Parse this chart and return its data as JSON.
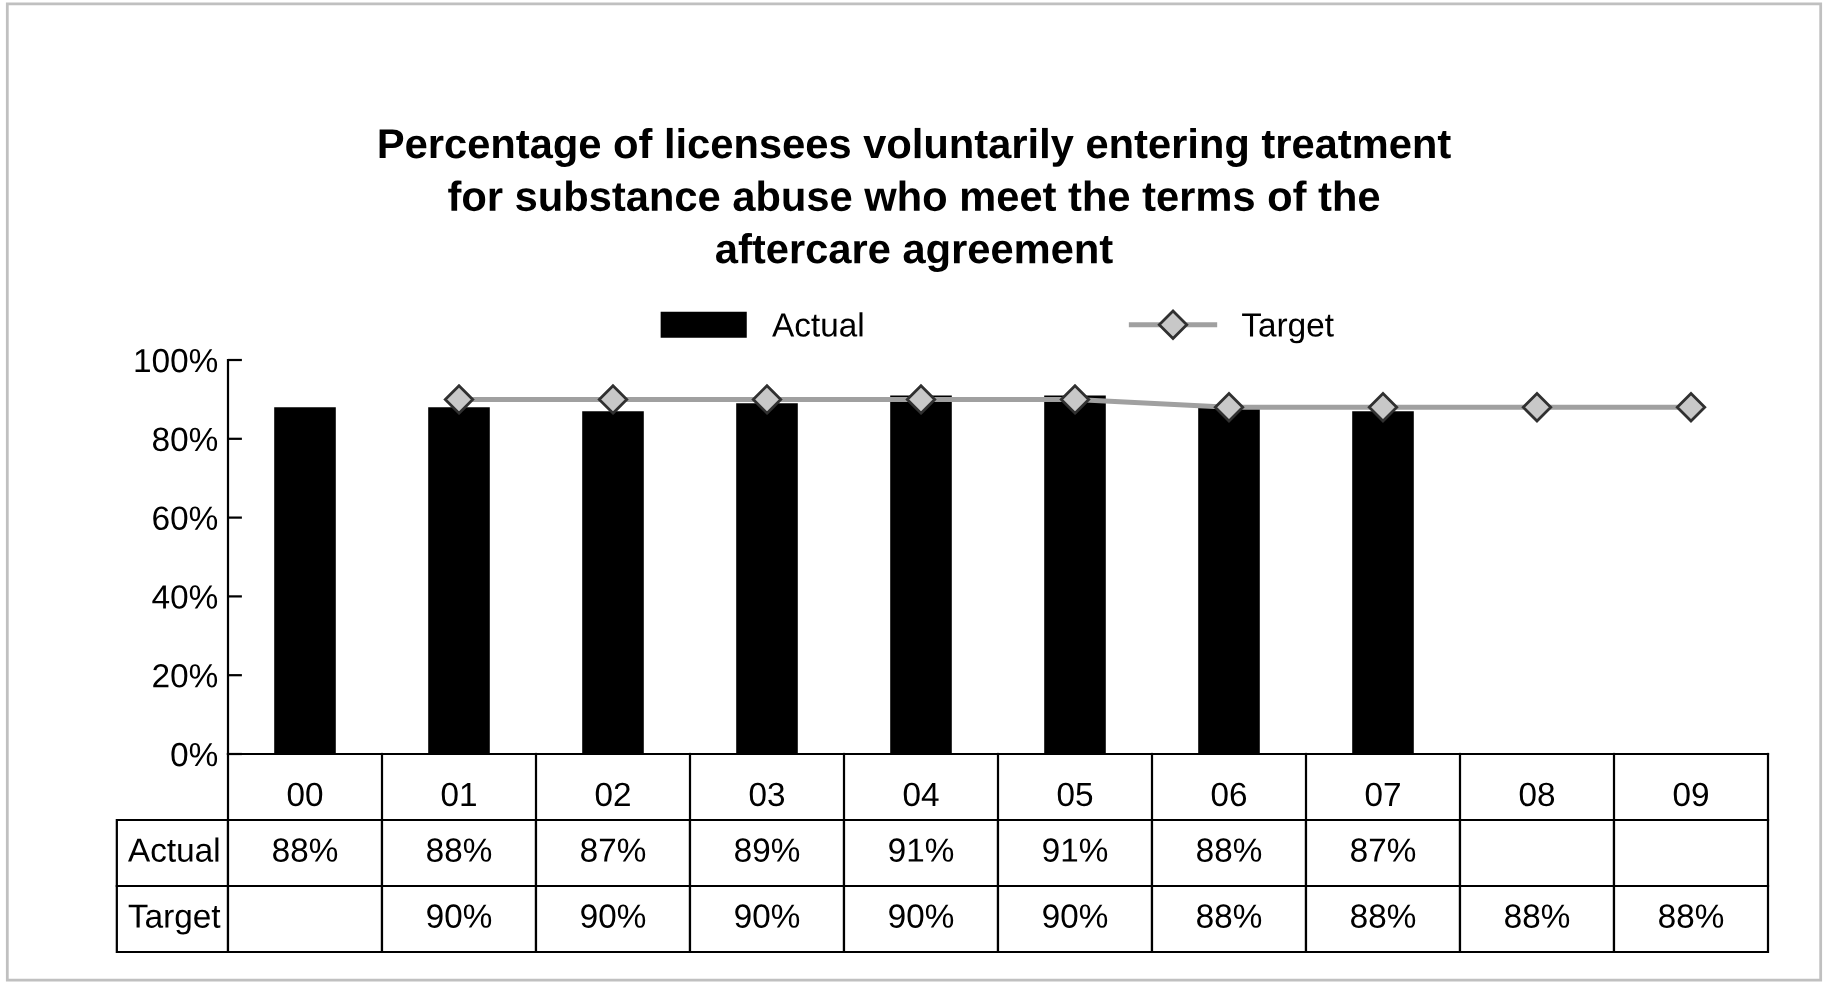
{
  "chart_data": {
    "type": "bar",
    "title": "Percentage of licensees voluntarily entering treatment\nfor substance abuse who meet the terms of the\naftercare agreement",
    "categories": [
      "00",
      "01",
      "02",
      "03",
      "04",
      "05",
      "06",
      "07",
      "08",
      "09"
    ],
    "series": [
      {
        "name": "Actual",
        "color": "#000000",
        "values": [
          88,
          88,
          87,
          89,
          91,
          91,
          88,
          87,
          null,
          null
        ],
        "value_labels": [
          "88%",
          "88%",
          "87%",
          "89%",
          "91%",
          "91%",
          "88%",
          "87%",
          null,
          null
        ]
      },
      {
        "name": "Target",
        "type": "line",
        "color": "#a0a0a0",
        "marker": "diamond",
        "values": [
          null,
          90,
          90,
          90,
          90,
          90,
          88,
          88,
          88,
          88
        ],
        "value_labels": [
          null,
          "90%",
          "90%",
          "90%",
          "90%",
          "90%",
          "88%",
          "88%",
          "88%",
          "88%"
        ]
      }
    ],
    "ylim": [
      0,
      100
    ],
    "yticks": [
      {
        "value": 0,
        "label": "0%"
      },
      {
        "value": 20,
        "label": "20%"
      },
      {
        "value": 40,
        "label": "40%"
      },
      {
        "value": 60,
        "label": "60%"
      },
      {
        "value": 80,
        "label": "80%"
      },
      {
        "value": 100,
        "label": "100%"
      }
    ],
    "grid": false,
    "legend": "top"
  }
}
